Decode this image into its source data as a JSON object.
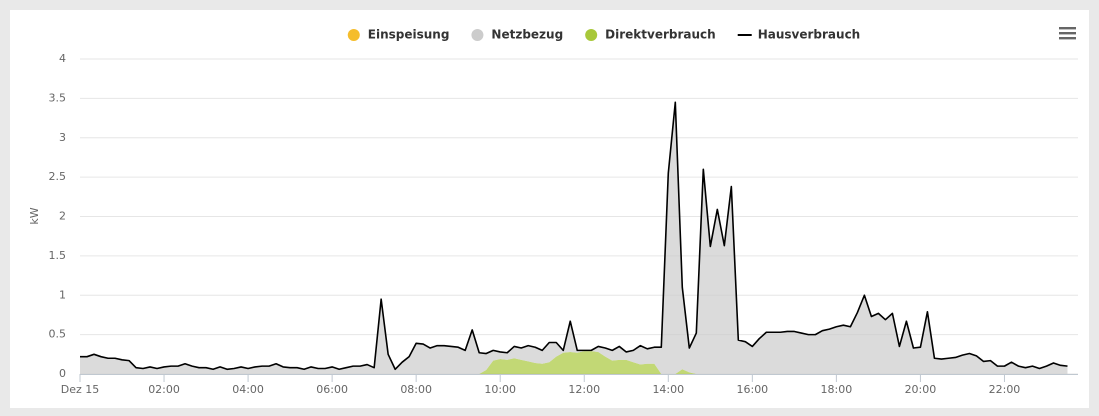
{
  "chart_data": {
    "type": "area",
    "y_label": "kW",
    "x": [
      0,
      10,
      20,
      30,
      40,
      50,
      60,
      70,
      80,
      90,
      100,
      110,
      120,
      130,
      140,
      150,
      160,
      170,
      180,
      190,
      200,
      210,
      220,
      230,
      240,
      250,
      260,
      270,
      280,
      290,
      300,
      310,
      320,
      330,
      340,
      350,
      360,
      370,
      380,
      390,
      400,
      410,
      420,
      430,
      440,
      450,
      460,
      470,
      480,
      490,
      500,
      510,
      520,
      530,
      540,
      550,
      560,
      570,
      580,
      590,
      600,
      610,
      620,
      630,
      640,
      650,
      660,
      670,
      680,
      690,
      700,
      710,
      720,
      730,
      740,
      750,
      760,
      770,
      780,
      790,
      800,
      810,
      820,
      830,
      840,
      850,
      860,
      870,
      880,
      890,
      900,
      910,
      920,
      930,
      940,
      950,
      960,
      970,
      980,
      990,
      1000,
      1010,
      1020,
      1030,
      1040,
      1050,
      1060,
      1070,
      1080,
      1090,
      1100,
      1110,
      1120,
      1130,
      1140,
      1150,
      1160,
      1170,
      1180,
      1190,
      1200,
      1210,
      1220,
      1230,
      1240,
      1250,
      1260,
      1270,
      1280,
      1290,
      1300,
      1310,
      1320,
      1330,
      1340,
      1350,
      1360,
      1370,
      1380,
      1390,
      1400,
      1410
    ],
    "xlim": [
      0,
      1425
    ],
    "xticks": [
      {
        "value": 0,
        "label": "Dez 15"
      },
      {
        "value": 120,
        "label": "02:00"
      },
      {
        "value": 240,
        "label": "04:00"
      },
      {
        "value": 360,
        "label": "06:00"
      },
      {
        "value": 480,
        "label": "08:00"
      },
      {
        "value": 600,
        "label": "10:00"
      },
      {
        "value": 720,
        "label": "12:00"
      },
      {
        "value": 840,
        "label": "14:00"
      },
      {
        "value": 960,
        "label": "16:00"
      },
      {
        "value": 1080,
        "label": "18:00"
      },
      {
        "value": 1200,
        "label": "20:00"
      },
      {
        "value": 1320,
        "label": "22:00"
      }
    ],
    "ylim": [
      0,
      4
    ],
    "yticks": [
      0,
      0.5,
      1,
      1.5,
      2,
      2.5,
      3,
      3.5,
      4
    ],
    "grid": true,
    "legend": "top",
    "series": [
      {
        "name": "Einspeisung",
        "color": "#f5bd2c",
        "type": "area",
        "values": [
          0,
          0,
          0,
          0,
          0,
          0,
          0,
          0,
          0,
          0,
          0,
          0,
          0,
          0,
          0,
          0,
          0,
          0,
          0,
          0,
          0,
          0,
          0,
          0,
          0,
          0,
          0,
          0,
          0,
          0,
          0,
          0,
          0,
          0,
          0,
          0,
          0,
          0,
          0,
          0,
          0,
          0,
          0,
          0,
          0,
          0,
          0,
          0,
          0,
          0,
          0,
          0,
          0,
          0,
          0,
          0,
          0,
          0,
          0,
          0,
          0,
          0,
          0,
          0,
          0,
          0,
          0,
          0,
          0,
          0,
          0,
          0,
          0,
          0,
          0,
          0,
          0,
          0,
          0,
          0,
          0,
          0,
          0,
          0,
          0,
          0,
          0,
          0,
          0,
          0,
          0,
          0,
          0,
          0,
          0,
          0,
          0,
          0,
          0,
          0,
          0,
          0,
          0,
          0,
          0,
          0,
          0,
          0,
          0,
          0,
          0,
          0,
          0,
          0,
          0,
          0,
          0,
          0,
          0,
          0,
          0,
          0,
          0,
          0,
          0,
          0,
          0,
          0,
          0,
          0,
          0,
          0,
          0,
          0,
          0,
          0,
          0,
          0,
          0,
          0,
          0,
          0
        ]
      },
      {
        "name": "Netzbezug",
        "color": "#cccccc",
        "type": "area",
        "values": [
          0.22,
          0.22,
          0.25,
          0.22,
          0.2,
          0.2,
          0.18,
          0.17,
          0.08,
          0.07,
          0.09,
          0.07,
          0.09,
          0.1,
          0.1,
          0.13,
          0.1,
          0.08,
          0.08,
          0.06,
          0.09,
          0.06,
          0.07,
          0.09,
          0.07,
          0.09,
          0.1,
          0.1,
          0.13,
          0.09,
          0.08,
          0.08,
          0.06,
          0.09,
          0.07,
          0.07,
          0.09,
          0.06,
          0.08,
          0.1,
          0.1,
          0.12,
          0.08,
          0.95,
          0.25,
          0.06,
          0.15,
          0.22,
          0.39,
          0.38,
          0.33,
          0.36,
          0.36,
          0.35,
          0.34,
          0.3,
          0.56,
          0.27,
          0.21,
          0.13,
          0.09,
          0.09,
          0.15,
          0.15,
          0.2,
          0.2,
          0.17,
          0.25,
          0.18,
          0.03,
          0.39,
          0.03,
          0.01,
          0.01,
          0.07,
          0.11,
          0.13,
          0.17,
          0.1,
          0.15,
          0.24,
          0.19,
          0.21,
          0.34,
          2.55,
          3.45,
          1.04,
          0.31,
          0.52,
          2.6,
          1.62,
          2.09,
          1.63,
          2.38,
          0.43,
          0.41,
          0.35,
          0.45,
          0.53,
          0.53,
          0.53,
          0.54,
          0.54,
          0.52,
          0.5,
          0.5,
          0.55,
          0.57,
          0.6,
          0.62,
          0.6,
          0.78,
          1.0,
          0.73,
          0.77,
          0.69,
          0.77,
          0.35,
          0.67,
          0.33,
          0.34,
          0.79,
          0.2,
          0.19,
          0.2,
          0.21,
          0.24,
          0.26,
          0.23,
          0.16,
          0.17,
          0.1,
          0.1,
          0.15,
          0.1,
          0.08,
          0.1,
          0.07,
          0.1,
          0.14,
          0.11,
          0.1
        ]
      },
      {
        "name": "Direktverbrauch",
        "color": "#a8c83a",
        "type": "area",
        "values": [
          0,
          0,
          0,
          0,
          0,
          0,
          0,
          0,
          0,
          0,
          0,
          0,
          0,
          0,
          0,
          0,
          0,
          0,
          0,
          0,
          0,
          0,
          0,
          0,
          0,
          0,
          0,
          0,
          0,
          0,
          0,
          0,
          0,
          0,
          0,
          0,
          0,
          0,
          0,
          0,
          0,
          0,
          0,
          0,
          0,
          0,
          0,
          0,
          0,
          0,
          0,
          0,
          0,
          0,
          0,
          0,
          0,
          0,
          0.05,
          0.17,
          0.19,
          0.18,
          0.2,
          0.18,
          0.16,
          0.14,
          0.13,
          0.15,
          0.22,
          0.27,
          0.28,
          0.27,
          0.29,
          0.29,
          0.28,
          0.22,
          0.17,
          0.18,
          0.18,
          0.15,
          0.12,
          0.13,
          0.13,
          0,
          0,
          0,
          0.06,
          0.02,
          0,
          0,
          0,
          0,
          0,
          0,
          0,
          0,
          0,
          0,
          0,
          0,
          0,
          0,
          0,
          0,
          0,
          0,
          0,
          0,
          0,
          0,
          0,
          0,
          0,
          0,
          0,
          0,
          0,
          0,
          0,
          0,
          0,
          0,
          0,
          0,
          0,
          0,
          0,
          0,
          0,
          0,
          0,
          0,
          0,
          0,
          0,
          0,
          0,
          0,
          0,
          0,
          0,
          0
        ]
      },
      {
        "name": "Hausverbrauch",
        "color": "#000000",
        "type": "line",
        "values": [
          0.22,
          0.22,
          0.25,
          0.22,
          0.2,
          0.2,
          0.18,
          0.17,
          0.08,
          0.07,
          0.09,
          0.07,
          0.09,
          0.1,
          0.1,
          0.13,
          0.1,
          0.08,
          0.08,
          0.06,
          0.09,
          0.06,
          0.07,
          0.09,
          0.07,
          0.09,
          0.1,
          0.1,
          0.13,
          0.09,
          0.08,
          0.08,
          0.06,
          0.09,
          0.07,
          0.07,
          0.09,
          0.06,
          0.08,
          0.1,
          0.1,
          0.12,
          0.08,
          0.95,
          0.25,
          0.06,
          0.15,
          0.22,
          0.39,
          0.38,
          0.33,
          0.36,
          0.36,
          0.35,
          0.34,
          0.3,
          0.56,
          0.27,
          0.26,
          0.3,
          0.28,
          0.27,
          0.35,
          0.33,
          0.36,
          0.34,
          0.3,
          0.4,
          0.4,
          0.3,
          0.67,
          0.3,
          0.3,
          0.3,
          0.35,
          0.33,
          0.3,
          0.35,
          0.28,
          0.3,
          0.36,
          0.32,
          0.34,
          0.34,
          2.55,
          3.45,
          1.1,
          0.33,
          0.52,
          2.6,
          1.62,
          2.09,
          1.63,
          2.38,
          0.43,
          0.41,
          0.35,
          0.45,
          0.53,
          0.53,
          0.53,
          0.54,
          0.54,
          0.52,
          0.5,
          0.5,
          0.55,
          0.57,
          0.6,
          0.62,
          0.6,
          0.78,
          1.0,
          0.73,
          0.77,
          0.69,
          0.77,
          0.35,
          0.67,
          0.33,
          0.34,
          0.79,
          0.2,
          0.19,
          0.2,
          0.21,
          0.24,
          0.26,
          0.23,
          0.16,
          0.17,
          0.1,
          0.1,
          0.15,
          0.1,
          0.08,
          0.1,
          0.07,
          0.1,
          0.14,
          0.11,
          0.1
        ]
      }
    ]
  }
}
